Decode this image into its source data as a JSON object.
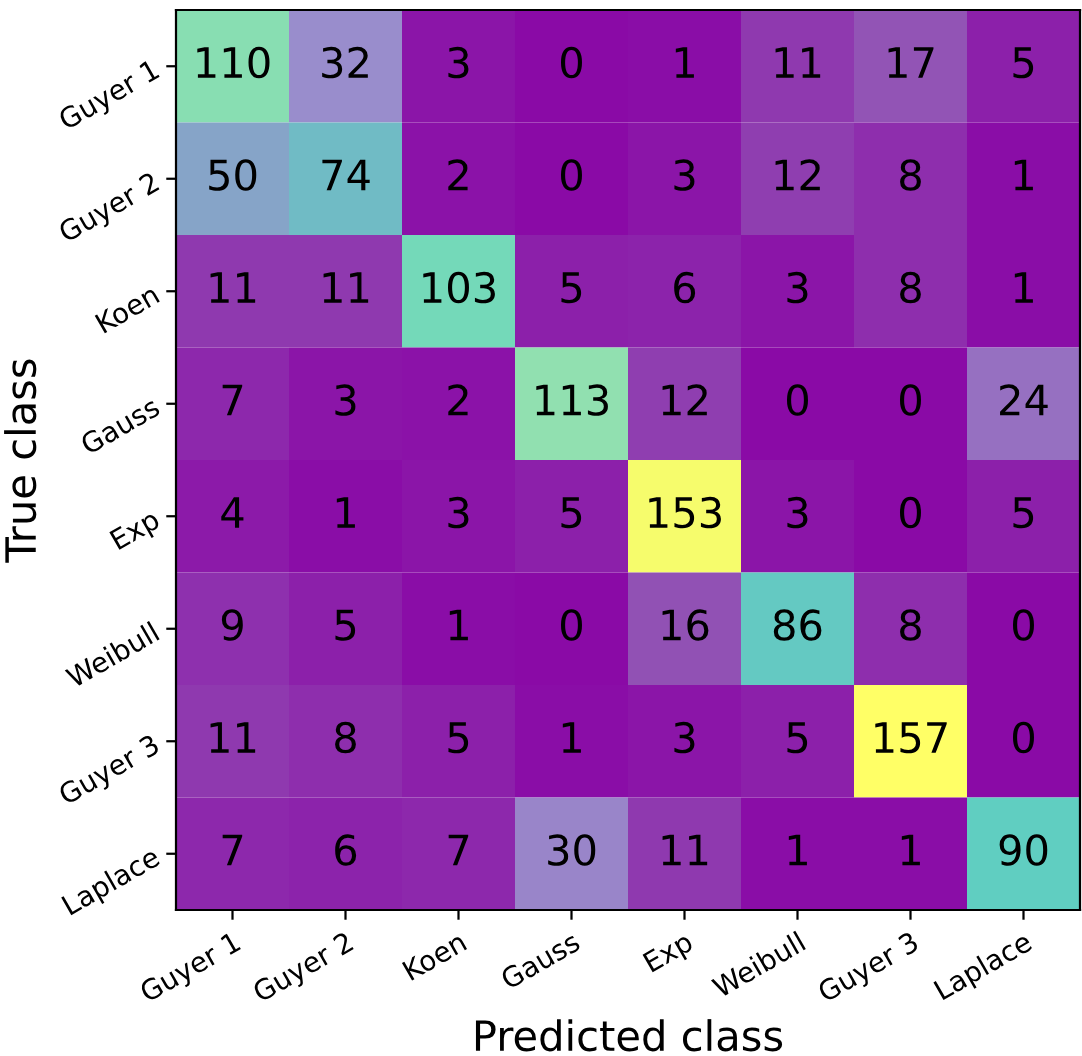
{
  "chart_data": {
    "type": "heatmap",
    "xlabel": "Predicted class",
    "ylabel": "True class",
    "categories": [
      "Guyer 1",
      "Guyer 2",
      "Koen",
      "Gauss",
      "Exp",
      "Weibull",
      "Guyer 3",
      "Laplace"
    ],
    "y_categories": [
      "Guyer 1",
      "Guyer 2",
      "Koen",
      "Gauss",
      "Exp",
      "Weibull",
      "Guyer 3",
      "Laplace"
    ],
    "cells": [
      [
        110,
        32,
        3,
        0,
        1,
        11,
        17,
        5
      ],
      [
        50,
        74,
        2,
        0,
        3,
        12,
        8,
        1
      ],
      [
        11,
        11,
        103,
        5,
        6,
        3,
        8,
        1
      ],
      [
        7,
        3,
        2,
        113,
        12,
        0,
        0,
        24
      ],
      [
        4,
        1,
        3,
        5,
        153,
        3,
        0,
        5
      ],
      [
        9,
        5,
        1,
        0,
        16,
        86,
        8,
        0
      ],
      [
        11,
        8,
        5,
        1,
        3,
        5,
        157,
        0
      ],
      [
        7,
        6,
        7,
        30,
        11,
        1,
        1,
        90
      ]
    ],
    "data_labels": true
  }
}
